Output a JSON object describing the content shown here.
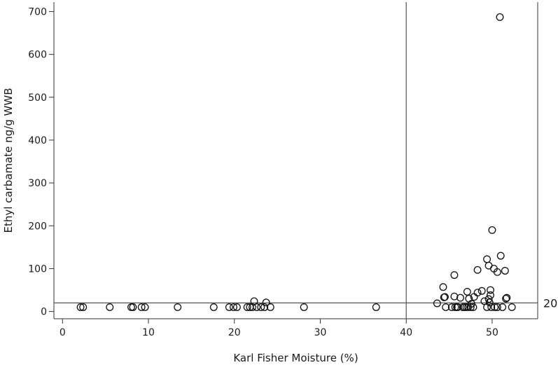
{
  "chart_data": {
    "type": "scatter",
    "xlabel": "Karl Fisher Moisture (%)",
    "ylabel": "Ethyl carbamate ng/g WWB",
    "xlim": [
      -1,
      55.3
    ],
    "ylim": [
      -17,
      722
    ],
    "x_ticks": [
      0,
      10,
      20,
      30,
      40,
      50
    ],
    "y_ticks": [
      0,
      100,
      200,
      300,
      400,
      500,
      600,
      700
    ],
    "reference_lines": {
      "vertical_x": 40,
      "horizontal_y": 20,
      "horizontal_label": "20"
    },
    "grid": false,
    "legend": "none",
    "marker": "open-circle",
    "points": [
      {
        "x": 2.1,
        "y": 10
      },
      {
        "x": 2.4,
        "y": 10
      },
      {
        "x": 5.5,
        "y": 10
      },
      {
        "x": 8.0,
        "y": 10
      },
      {
        "x": 8.2,
        "y": 10
      },
      {
        "x": 9.2,
        "y": 10
      },
      {
        "x": 9.6,
        "y": 10
      },
      {
        "x": 13.4,
        "y": 10
      },
      {
        "x": 17.6,
        "y": 10
      },
      {
        "x": 19.4,
        "y": 10
      },
      {
        "x": 19.9,
        "y": 10
      },
      {
        "x": 20.3,
        "y": 10
      },
      {
        "x": 21.5,
        "y": 10
      },
      {
        "x": 21.8,
        "y": 10
      },
      {
        "x": 22.1,
        "y": 10
      },
      {
        "x": 22.3,
        "y": 24
      },
      {
        "x": 22.6,
        "y": 10
      },
      {
        "x": 23.1,
        "y": 10
      },
      {
        "x": 23.5,
        "y": 10
      },
      {
        "x": 23.7,
        "y": 21
      },
      {
        "x": 24.2,
        "y": 10
      },
      {
        "x": 28.1,
        "y": 10
      },
      {
        "x": 36.5,
        "y": 10
      },
      {
        "x": 43.6,
        "y": 19
      },
      {
        "x": 44.3,
        "y": 57
      },
      {
        "x": 44.4,
        "y": 33
      },
      {
        "x": 44.6,
        "y": 10
      },
      {
        "x": 44.5,
        "y": 34
      },
      {
        "x": 45.3,
        "y": 10
      },
      {
        "x": 45.6,
        "y": 85
      },
      {
        "x": 45.6,
        "y": 35
      },
      {
        "x": 45.7,
        "y": 10
      },
      {
        "x": 45.9,
        "y": 10
      },
      {
        "x": 46.0,
        "y": 10
      },
      {
        "x": 46.3,
        "y": 32
      },
      {
        "x": 46.6,
        "y": 10
      },
      {
        "x": 46.8,
        "y": 10
      },
      {
        "x": 47.0,
        "y": 10
      },
      {
        "x": 47.1,
        "y": 46
      },
      {
        "x": 47.2,
        "y": 10
      },
      {
        "x": 47.3,
        "y": 30
      },
      {
        "x": 47.5,
        "y": 10
      },
      {
        "x": 47.6,
        "y": 18
      },
      {
        "x": 47.8,
        "y": 10
      },
      {
        "x": 47.9,
        "y": 34
      },
      {
        "x": 48.3,
        "y": 44
      },
      {
        "x": 48.3,
        "y": 97
      },
      {
        "x": 48.8,
        "y": 48
      },
      {
        "x": 49.1,
        "y": 24
      },
      {
        "x": 49.4,
        "y": 10
      },
      {
        "x": 49.4,
        "y": 122
      },
      {
        "x": 49.6,
        "y": 107
      },
      {
        "x": 49.6,
        "y": 29
      },
      {
        "x": 49.7,
        "y": 21
      },
      {
        "x": 49.8,
        "y": 38
      },
      {
        "x": 49.8,
        "y": 50
      },
      {
        "x": 49.9,
        "y": 10
      },
      {
        "x": 50.0,
        "y": 190
      },
      {
        "x": 50.2,
        "y": 100
      },
      {
        "x": 50.3,
        "y": 10
      },
      {
        "x": 50.6,
        "y": 92
      },
      {
        "x": 50.6,
        "y": 10
      },
      {
        "x": 50.9,
        "y": 687
      },
      {
        "x": 51.0,
        "y": 130
      },
      {
        "x": 51.2,
        "y": 10
      },
      {
        "x": 51.5,
        "y": 95
      },
      {
        "x": 51.6,
        "y": 30
      },
      {
        "x": 51.7,
        "y": 32
      },
      {
        "x": 52.3,
        "y": 10
      }
    ]
  }
}
